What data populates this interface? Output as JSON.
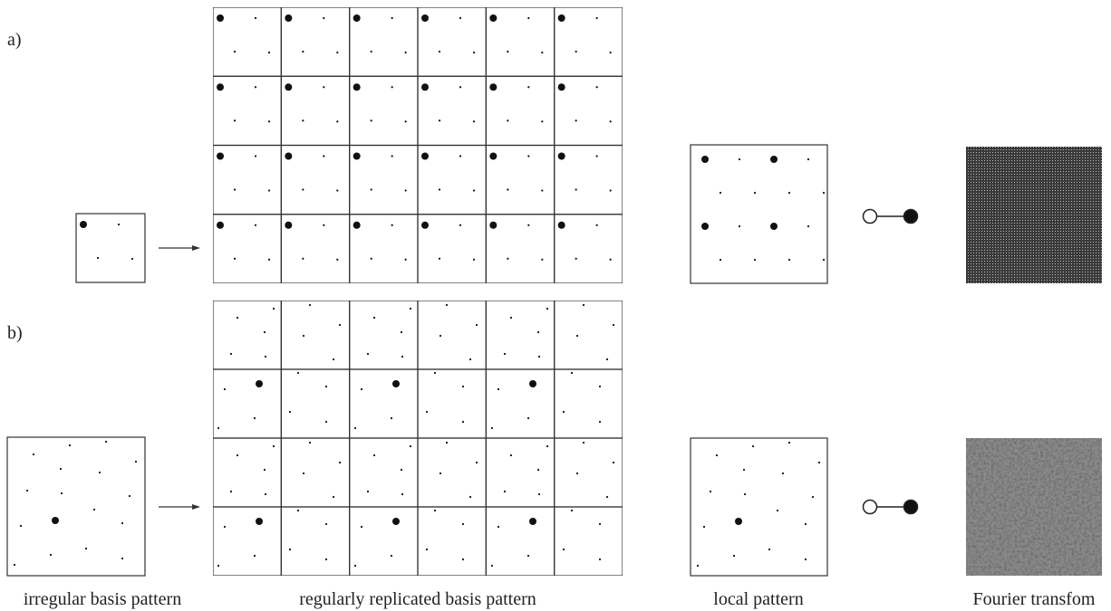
{
  "rows": [
    {
      "label": "a)"
    },
    {
      "label": "b)"
    }
  ],
  "captions": [
    "irregular basis pattern",
    "regularly replicated basis pattern",
    "local pattern",
    "Fourier transfom"
  ]
}
